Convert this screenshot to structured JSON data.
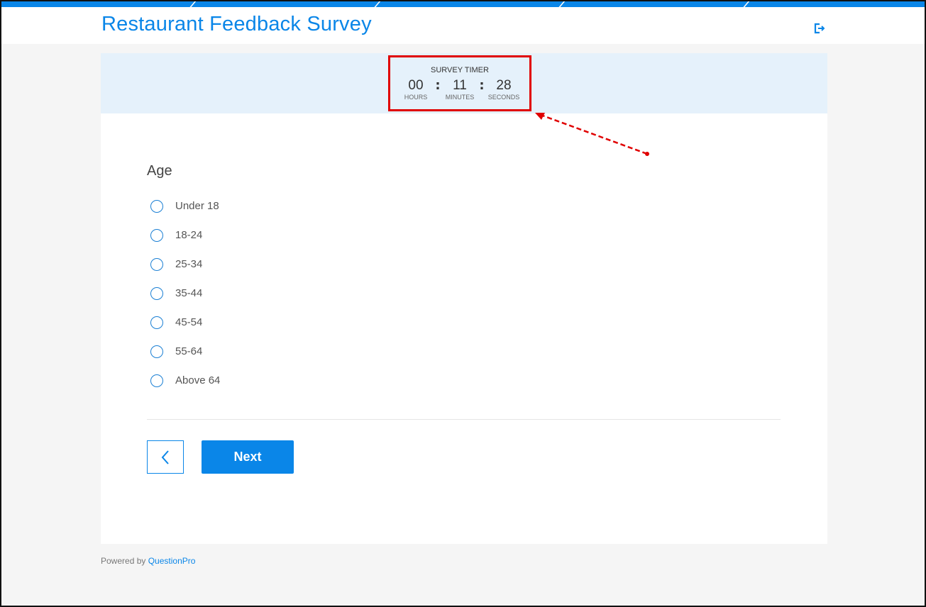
{
  "header": {
    "title": "Restaurant Feedback Survey",
    "exit_icon": "exit-icon"
  },
  "timer": {
    "label": "SURVEY TIMER",
    "hours": "00",
    "minutes": "11",
    "seconds": "28",
    "hours_label": "HOURS",
    "minutes_label": "MINUTES",
    "seconds_label": "SECONDS",
    "separator": ":"
  },
  "question": {
    "title": "Age",
    "options": [
      "Under 18",
      "18-24",
      "25-34",
      "35-44",
      "45-54",
      "55-64",
      "Above 64"
    ]
  },
  "nav": {
    "next_label": "Next",
    "back_icon": "chevron-left-icon"
  },
  "footer": {
    "powered_by": "Powered by",
    "brand": "QuestionPro"
  },
  "colors": {
    "accent": "#0a86e8",
    "annotation": "#e00000",
    "timer_band": "#e5f1fb"
  }
}
